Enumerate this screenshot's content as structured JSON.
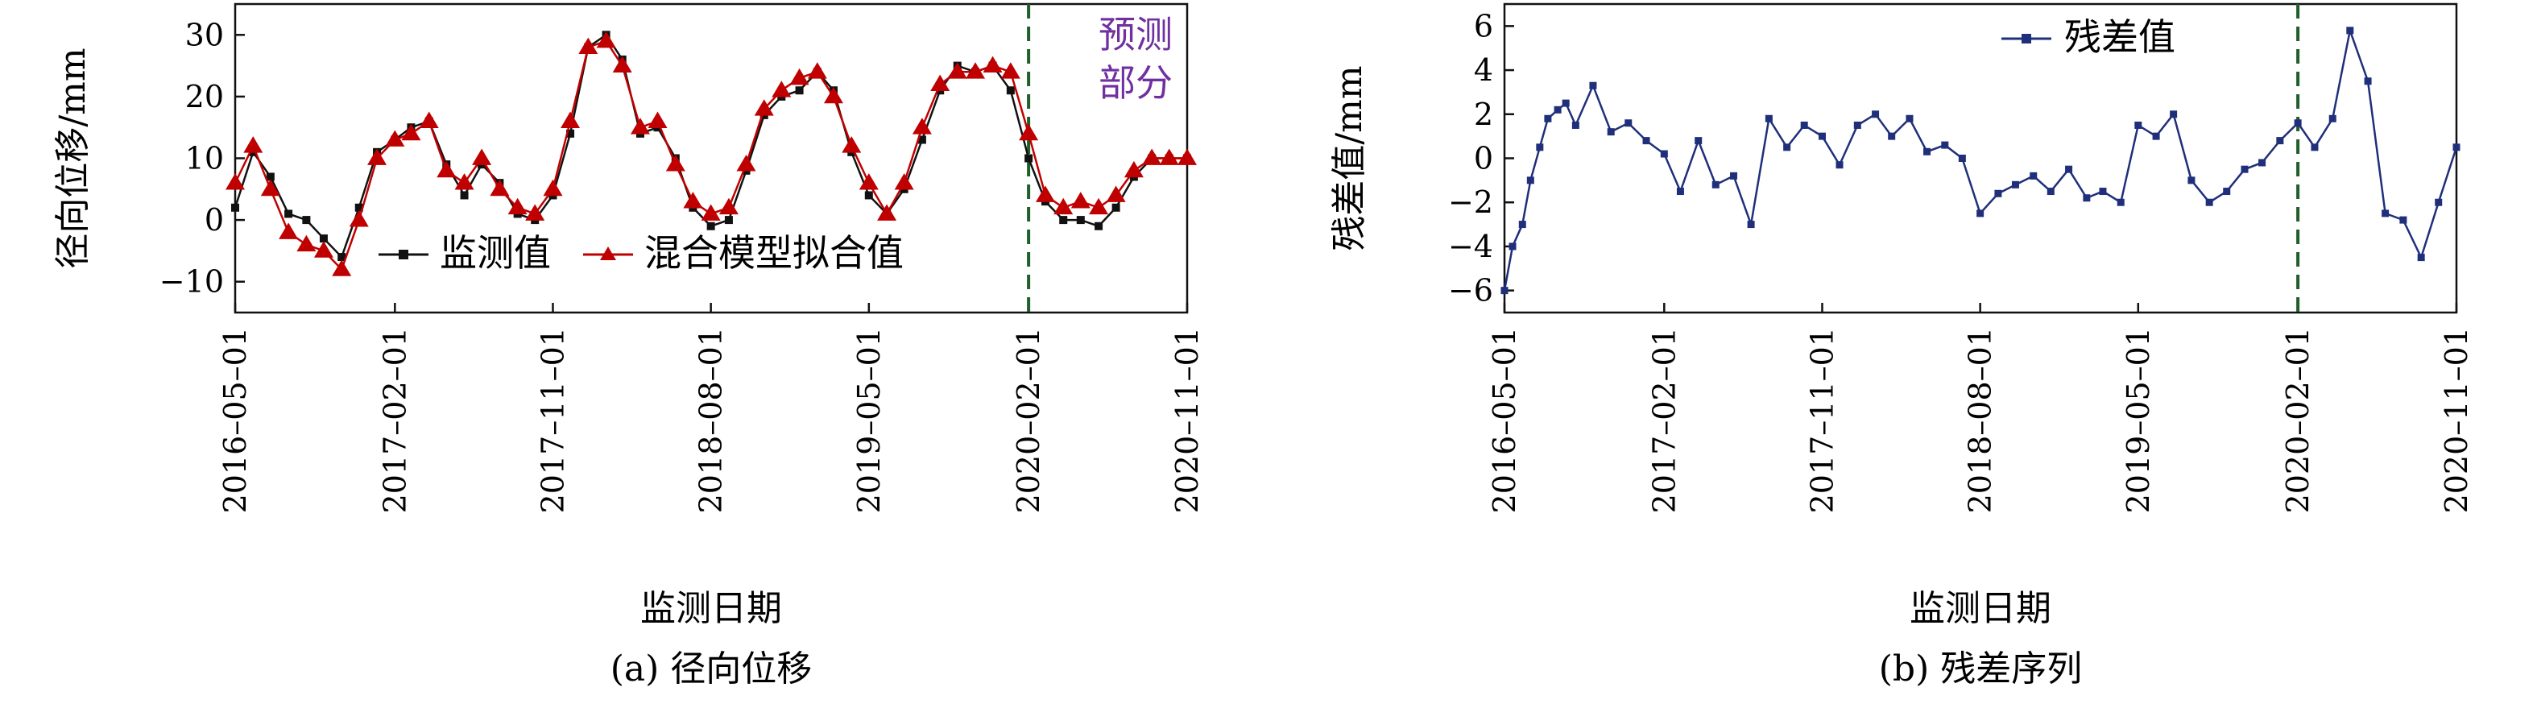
{
  "chart_data": [
    {
      "type": "line",
      "panel_caption": "(a) 径向位移",
      "xlabel": "监测日期",
      "ylabel": "径向位移/mm",
      "ylim": [
        -15,
        35
      ],
      "yticks": [
        -10,
        0,
        10,
        20,
        30
      ],
      "xlim": [
        "2016-05-01",
        "2020-11-01"
      ],
      "xticks": [
        "2016-05-01",
        "2017-02-01",
        "2017-11-01",
        "2018-08-01",
        "2019-05-01",
        "2020-02-01",
        "2020-11-01"
      ],
      "forecast_line_date": "2020-02-01",
      "annotation": [
        "预测",
        "部分"
      ],
      "annotation_color": "#7030a0",
      "legend_position": "bottom-center",
      "series": [
        {
          "name": "监测值",
          "color": "#111111",
          "marker": "square",
          "x": [
            "2016-05-01",
            "2016-06-01",
            "2016-07-01",
            "2016-08-01",
            "2016-09-01",
            "2016-10-01",
            "2016-11-01",
            "2016-12-01",
            "2017-01-01",
            "2017-02-01",
            "2017-03-01",
            "2017-04-01",
            "2017-05-01",
            "2017-06-01",
            "2017-07-01",
            "2017-08-01",
            "2017-09-01",
            "2017-10-01",
            "2017-11-01",
            "2017-12-01",
            "2018-01-01",
            "2018-02-01",
            "2018-03-01",
            "2018-04-01",
            "2018-05-01",
            "2018-06-01",
            "2018-07-01",
            "2018-08-01",
            "2018-09-01",
            "2018-10-01",
            "2018-11-01",
            "2018-12-01",
            "2019-01-01",
            "2019-02-01",
            "2019-03-01",
            "2019-04-01",
            "2019-05-01",
            "2019-06-01",
            "2019-07-01",
            "2019-08-01",
            "2019-09-01",
            "2019-10-01",
            "2019-11-01",
            "2019-12-01",
            "2020-01-01",
            "2020-02-01",
            "2020-03-01",
            "2020-04-01",
            "2020-05-01",
            "2020-06-01",
            "2020-07-01",
            "2020-08-01",
            "2020-09-01",
            "2020-10-01",
            "2020-11-01"
          ],
          "values": [
            2,
            11,
            7,
            1,
            0,
            -3,
            -6,
            2,
            11,
            13,
            15,
            16,
            9,
            4,
            9,
            6,
            1,
            0,
            4,
            14,
            28,
            30,
            26,
            14,
            15,
            10,
            2,
            -1,
            0,
            8,
            17,
            20,
            21,
            24,
            21,
            11,
            4,
            1,
            5,
            13,
            21,
            25,
            24,
            25,
            21,
            10,
            3,
            0,
            0,
            -1,
            2,
            7,
            10,
            10,
            10
          ]
        },
        {
          "name": "混合模型拟合值",
          "color": "#c00000",
          "marker": "triangle",
          "x": [
            "2016-05-01",
            "2016-06-01",
            "2016-07-01",
            "2016-08-01",
            "2016-09-01",
            "2016-10-01",
            "2016-11-01",
            "2016-12-01",
            "2017-01-01",
            "2017-02-01",
            "2017-03-01",
            "2017-04-01",
            "2017-05-01",
            "2017-06-01",
            "2017-07-01",
            "2017-08-01",
            "2017-09-01",
            "2017-10-01",
            "2017-11-01",
            "2017-12-01",
            "2018-01-01",
            "2018-02-01",
            "2018-03-01",
            "2018-04-01",
            "2018-05-01",
            "2018-06-01",
            "2018-07-01",
            "2018-08-01",
            "2018-09-01",
            "2018-10-01",
            "2018-11-01",
            "2018-12-01",
            "2019-01-01",
            "2019-02-01",
            "2019-03-01",
            "2019-04-01",
            "2019-05-01",
            "2019-06-01",
            "2019-07-01",
            "2019-08-01",
            "2019-09-01",
            "2019-10-01",
            "2019-11-01",
            "2019-12-01",
            "2020-01-01",
            "2020-02-01",
            "2020-03-01",
            "2020-04-01",
            "2020-05-01",
            "2020-06-01",
            "2020-07-01",
            "2020-08-01",
            "2020-09-01",
            "2020-10-01",
            "2020-11-01"
          ],
          "values": [
            6,
            12,
            5,
            -2,
            -4,
            -5,
            -8,
            0,
            10,
            13,
            14,
            16,
            8,
            6,
            10,
            5,
            2,
            1,
            5,
            16,
            28,
            29,
            25,
            15,
            16,
            9,
            3,
            1,
            2,
            9,
            18,
            21,
            23,
            24,
            20,
            12,
            6,
            1,
            6,
            15,
            22,
            24,
            24,
            25,
            24,
            14,
            4,
            2,
            3,
            2,
            4,
            8,
            10,
            10,
            10
          ]
        }
      ]
    },
    {
      "type": "line",
      "panel_caption": "(b) 残差序列",
      "xlabel": "监测日期",
      "ylabel": "残差值/mm",
      "ylim": [
        -7,
        7
      ],
      "yticks": [
        -6,
        -4,
        -2,
        0,
        2,
        4,
        6
      ],
      "xlim": [
        "2016-05-01",
        "2020-11-01"
      ],
      "xticks": [
        "2016-05-01",
        "2017-02-01",
        "2017-11-01",
        "2018-08-01",
        "2019-05-01",
        "2020-02-01",
        "2020-11-01"
      ],
      "forecast_line_date": "2020-02-01",
      "legend_position": "top-center",
      "series": [
        {
          "name": "残差值",
          "color": "#1f2f7a",
          "marker": "square",
          "x": [
            "2016-05-01",
            "2016-05-15",
            "2016-06-01",
            "2016-06-15",
            "2016-07-01",
            "2016-07-15",
            "2016-08-01",
            "2016-08-15",
            "2016-09-01",
            "2016-10-01",
            "2016-11-01",
            "2016-12-01",
            "2017-01-01",
            "2017-02-01",
            "2017-03-01",
            "2017-04-01",
            "2017-05-01",
            "2017-06-01",
            "2017-07-01",
            "2017-08-01",
            "2017-09-01",
            "2017-10-01",
            "2017-11-01",
            "2017-12-01",
            "2018-01-01",
            "2018-02-01",
            "2018-03-01",
            "2018-04-01",
            "2018-05-01",
            "2018-06-01",
            "2018-07-01",
            "2018-08-01",
            "2018-09-01",
            "2018-10-01",
            "2018-11-01",
            "2018-12-01",
            "2019-01-01",
            "2019-02-01",
            "2019-03-01",
            "2019-04-01",
            "2019-05-01",
            "2019-06-01",
            "2019-07-01",
            "2019-08-01",
            "2019-09-01",
            "2019-10-01",
            "2019-11-01",
            "2019-12-01",
            "2020-01-01",
            "2020-02-01",
            "2020-03-01",
            "2020-04-01",
            "2020-05-01",
            "2020-06-01",
            "2020-07-01",
            "2020-08-01",
            "2020-09-01",
            "2020-10-01",
            "2020-11-01"
          ],
          "values": [
            -6,
            -4,
            -3,
            -1,
            0.5,
            1.8,
            2.2,
            2.5,
            1.5,
            3.3,
            1.2,
            1.6,
            0.8,
            0.2,
            -1.5,
            0.8,
            -1.2,
            -0.8,
            -3.0,
            1.8,
            0.5,
            1.5,
            1.0,
            -0.3,
            1.5,
            2.0,
            1.0,
            1.8,
            0.3,
            0.6,
            0.0,
            -2.5,
            -1.6,
            -1.2,
            -0.8,
            -1.5,
            -0.5,
            -1.8,
            -1.5,
            -2.0,
            1.5,
            1.0,
            2.0,
            -1.0,
            -2.0,
            -1.5,
            -0.5,
            -0.2,
            0.8,
            1.6,
            0.5,
            1.8,
            5.8,
            3.5,
            -2.5,
            -2.8,
            -4.5,
            -2.0,
            0.5
          ]
        }
      ]
    }
  ]
}
